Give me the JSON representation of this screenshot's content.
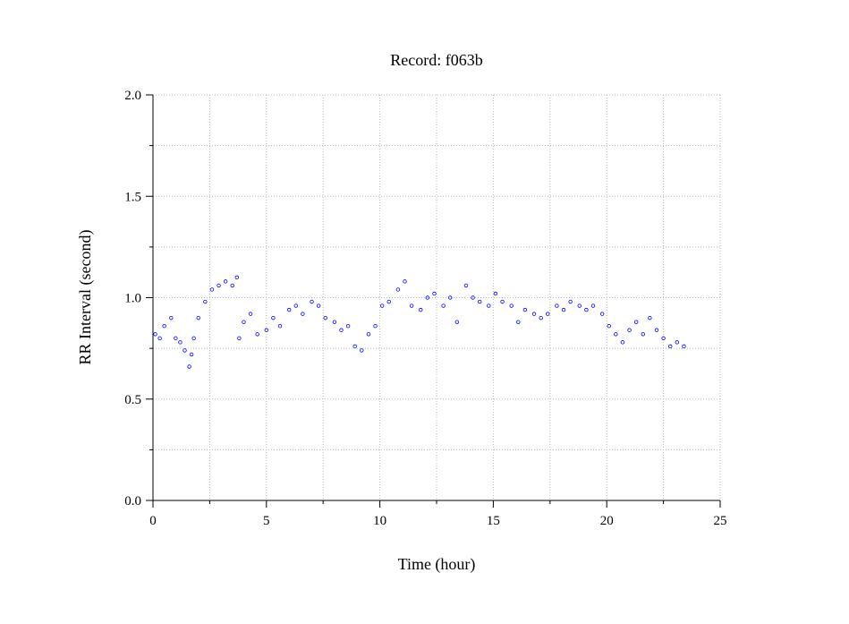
{
  "chart_data": {
    "type": "scatter",
    "title": "Record:  f063b",
    "xlabel": "Time (hour)",
    "ylabel": "RR Interval (second)",
    "xlim": [
      0,
      25
    ],
    "ylim": [
      0.0,
      2.0
    ],
    "x_ticks": [
      0,
      5,
      10,
      15,
      20,
      25
    ],
    "x_tick_labels": [
      "0",
      "5",
      "10",
      "15",
      "20",
      "25"
    ],
    "y_ticks": [
      0.0,
      0.5,
      1.0,
      1.5,
      2.0
    ],
    "y_tick_labels": [
      "0.0",
      "0.5",
      "1.0",
      "1.5",
      "2.0"
    ],
    "grid": true,
    "marker": "open-circle",
    "color": "#0000ff",
    "series": [
      {
        "values_note": "",
        "x": [
          0.1,
          0.3,
          0.5,
          0.8,
          1.0,
          1.2,
          1.4,
          1.6,
          1.7,
          1.8,
          2.0,
          2.3,
          2.6,
          2.9,
          3.2,
          3.5,
          3.7,
          3.8,
          4.0,
          4.3,
          4.6,
          5.0,
          5.3,
          5.6,
          6.0,
          6.3,
          6.6,
          7.0,
          7.3,
          7.6,
          8.0,
          8.3,
          8.6,
          8.9,
          9.2,
          9.5,
          9.8,
          10.1,
          10.4,
          10.8,
          11.1,
          11.4,
          11.8,
          12.1,
          12.4,
          12.8,
          13.1,
          13.4,
          13.8,
          14.1,
          14.4,
          14.8,
          15.1,
          15.4,
          15.8,
          16.1,
          16.4,
          16.8,
          17.1,
          17.4,
          17.8,
          18.1,
          18.4,
          18.8,
          19.1,
          19.4,
          19.8,
          20.1,
          20.4,
          20.7,
          21.0,
          21.3,
          21.6,
          21.9,
          22.2,
          22.5,
          22.8,
          23.1,
          23.4
        ],
        "y": [
          0.82,
          0.8,
          0.86,
          0.9,
          0.8,
          0.78,
          0.74,
          0.66,
          0.72,
          0.8,
          0.9,
          0.98,
          1.04,
          1.06,
          1.08,
          1.06,
          1.1,
          0.8,
          0.88,
          0.92,
          0.82,
          0.84,
          0.9,
          0.86,
          0.94,
          0.96,
          0.92,
          0.98,
          0.96,
          0.9,
          0.88,
          0.84,
          0.86,
          0.76,
          0.74,
          0.82,
          0.86,
          0.96,
          0.98,
          1.04,
          1.08,
          0.96,
          0.94,
          1.0,
          1.02,
          0.96,
          1.0,
          0.88,
          1.06,
          1.0,
          0.98,
          0.96,
          1.02,
          0.98,
          0.96,
          0.88,
          0.94,
          0.92,
          0.9,
          0.92,
          0.96,
          0.94,
          0.98,
          0.96,
          0.94,
          0.96,
          0.92,
          0.86,
          0.82,
          0.78,
          0.84,
          0.88,
          0.82,
          0.9,
          0.84,
          0.8,
          0.76,
          0.78,
          0.76
        ]
      }
    ]
  }
}
